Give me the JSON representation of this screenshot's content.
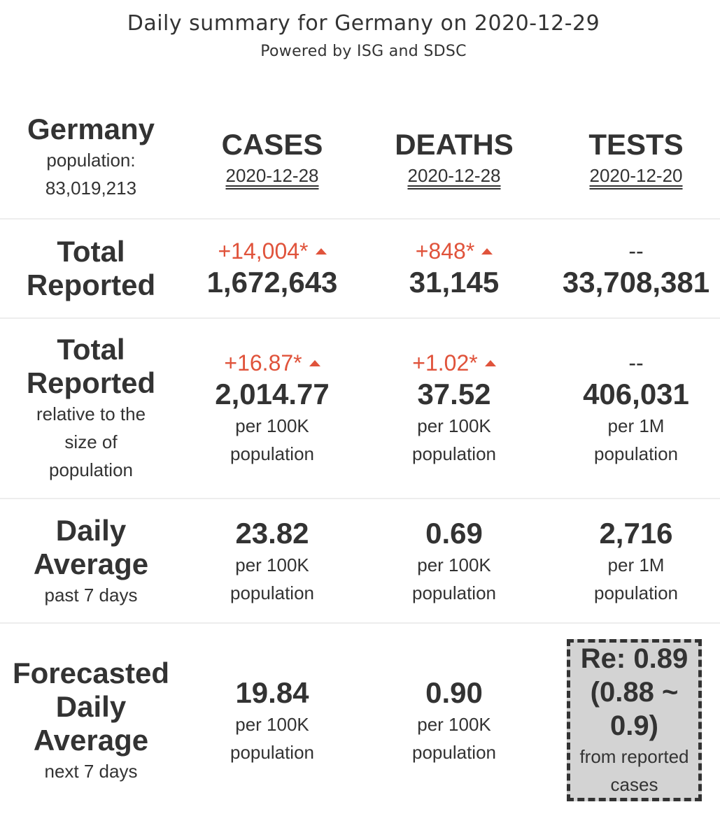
{
  "header": {
    "title": "Daily summary for Germany on 2020-12-29",
    "subtitle": "Powered by ISG and SDSC"
  },
  "country": {
    "name": "Germany",
    "population_label": "population:",
    "population": "83,019,213"
  },
  "columns": [
    {
      "title": "CASES",
      "date": "2020-12-28"
    },
    {
      "title": "DEATHS",
      "date": "2020-12-28"
    },
    {
      "title": "TESTS",
      "date": "2020-12-20"
    }
  ],
  "rows": {
    "total": {
      "label_line1": "Total",
      "label_line2": "Reported",
      "cases": {
        "change": "+14,004*",
        "value": "1,672,643"
      },
      "deaths": {
        "change": "+848*",
        "value": "31,145"
      },
      "tests": {
        "change": "--",
        "value": "33,708,381"
      }
    },
    "relative": {
      "label_line1": "Total",
      "label_line2": "Reported",
      "sub_line1": "relative to the",
      "sub_line2": "size of",
      "sub_line3": "population",
      "cases": {
        "change": "+16.87*",
        "value": "2,014.77",
        "unit1": "per 100K",
        "unit2": "population"
      },
      "deaths": {
        "change": "+1.02*",
        "value": "37.52",
        "unit1": "per 100K",
        "unit2": "population"
      },
      "tests": {
        "change": "--",
        "value": "406,031",
        "unit1": "per 1M",
        "unit2": "population"
      }
    },
    "daily": {
      "label_line1": "Daily",
      "label_line2": "Average",
      "sub": "past 7 days",
      "cases": {
        "value": "23.82",
        "unit1": "per 100K",
        "unit2": "population"
      },
      "deaths": {
        "value": "0.69",
        "unit1": "per 100K",
        "unit2": "population"
      },
      "tests": {
        "value": "2,716",
        "unit1": "per 1M",
        "unit2": "population"
      }
    },
    "forecast": {
      "label_line1": "Forecasted",
      "label_line2": "Daily",
      "label_line3": "Average",
      "sub": "next 7 days",
      "cases": {
        "value": "19.84",
        "unit1": "per 100K",
        "unit2": "population"
      },
      "deaths": {
        "value": "0.90",
        "unit1": "per 100K",
        "unit2": "population"
      },
      "re": {
        "line1": "Re: 0.89",
        "line2": "(0.88 ~",
        "line3": "0.9)",
        "note1": "from reported",
        "note2": "cases"
      }
    }
  },
  "colors": {
    "increase": "#e0533b",
    "text": "#333333",
    "re_box_bg": "#d3d3d3",
    "divider": "#ededed"
  }
}
